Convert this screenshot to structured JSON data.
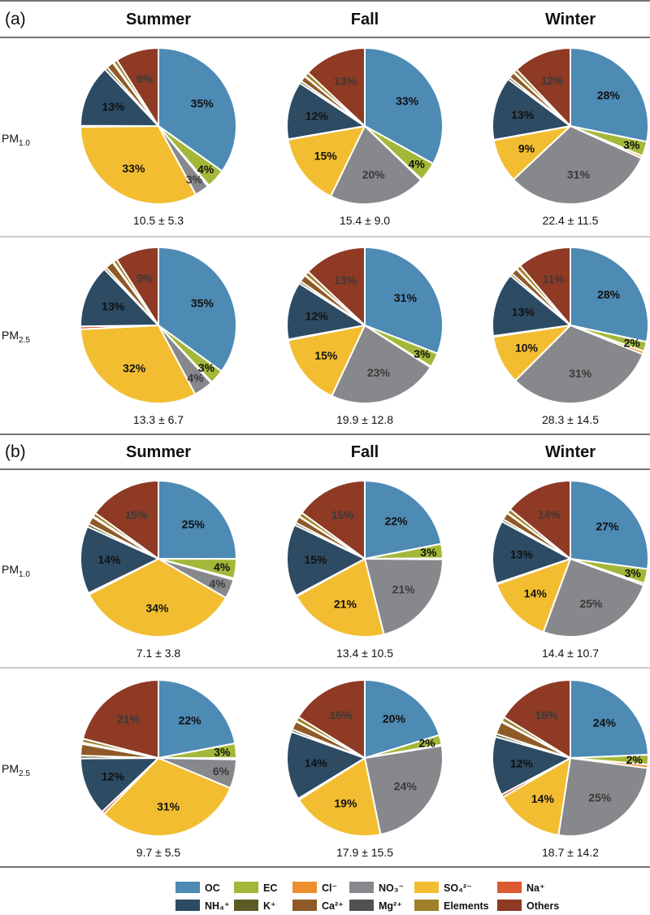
{
  "chart_data": {
    "type": "pie",
    "unit": "%",
    "components": [
      {
        "key": "OC",
        "label": "OC",
        "color": "#4D8AB4"
      },
      {
        "key": "EC",
        "label": "EC",
        "color": "#A3B83A"
      },
      {
        "key": "Cl",
        "label": "Cl⁻",
        "color": "#EE8F2F"
      },
      {
        "key": "NO3",
        "label": "NO₃⁻",
        "color": "#86888B"
      },
      {
        "key": "SO4",
        "label": "SO₄²⁻",
        "color": "#F2BD30"
      },
      {
        "key": "Na",
        "label": "Na⁺",
        "color": "#DC5A32"
      },
      {
        "key": "NH4",
        "label": "NH₄⁺",
        "color": "#2D4B63"
      },
      {
        "key": "K",
        "label": "K⁺",
        "color": "#5E5C26"
      },
      {
        "key": "Ca",
        "label": "Ca²⁺",
        "color": "#8F5A27"
      },
      {
        "key": "Mg",
        "label": "Mg²⁺",
        "color": "#525252"
      },
      {
        "key": "Elements",
        "label": "Elements",
        "color": "#A0812A"
      },
      {
        "key": "Others",
        "label": "Others",
        "color": "#8E3A24"
      }
    ],
    "slice_order": [
      "OC",
      "EC",
      "Cl",
      "NO3",
      "SO4",
      "Na",
      "NH4",
      "K",
      "Ca",
      "Mg",
      "Elements",
      "Others"
    ],
    "seasons": [
      "Summer",
      "Fall",
      "Winter"
    ],
    "size_fractions": [
      "PM1.0",
      "PM2.5"
    ],
    "panels": [
      {
        "label": "(a)",
        "rows": [
          {
            "size": "PM1.0",
            "pies": [
              {
                "season": "Summer",
                "total": "10.5 ± 5.3",
                "values": {
                  "OC": 35,
                  "EC": 4,
                  "Cl": 0.3,
                  "NO3": 3,
                  "SO4": 33,
                  "Na": 0.2,
                  "NH4": 13,
                  "K": 0.6,
                  "Ca": 1.5,
                  "Mg": 0.2,
                  "Elements": 0.8,
                  "Others": 9
                },
                "labels": {
                  "OC": "35%",
                  "EC": "4%",
                  "NO3": "3%",
                  "SO4": "33%",
                  "NH4": "13%",
                  "Others": "9%"
                }
              },
              {
                "season": "Fall",
                "total": "15.4 ± 9.0",
                "values": {
                  "OC": 33,
                  "EC": 4,
                  "Cl": 0.2,
                  "NO3": 20,
                  "SO4": 15,
                  "Na": 0.1,
                  "NH4": 12,
                  "K": 0.5,
                  "Ca": 1.2,
                  "Mg": 0.1,
                  "Elements": 0.9,
                  "Others": 13
                },
                "labels": {
                  "OC": "33%",
                  "EC": "4%",
                  "NO3": "20%",
                  "SO4": "15%",
                  "NH4": "12%",
                  "Others": "13%"
                }
              },
              {
                "season": "Winter",
                "total": "22.4 ± 11.5",
                "values": {
                  "OC": 28,
                  "EC": 3,
                  "Cl": 0.5,
                  "NO3": 31,
                  "SO4": 9,
                  "Na": 0.1,
                  "NH4": 13,
                  "K": 0.5,
                  "Ca": 1.2,
                  "Mg": 0.1,
                  "Elements": 0.8,
                  "Others": 12
                },
                "labels": {
                  "OC": "28%",
                  "EC": "3%",
                  "NO3": "31%",
                  "SO4": "9%",
                  "NH4": "13%",
                  "Others": "12%"
                }
              }
            ]
          },
          {
            "size": "PM2.5",
            "pies": [
              {
                "season": "Summer",
                "total": "13.3 ± 6.7",
                "values": {
                  "OC": 35,
                  "EC": 3,
                  "Cl": 0.2,
                  "NO3": 4,
                  "SO4": 32,
                  "Na": 0.6,
                  "NH4": 13,
                  "K": 0.5,
                  "Ca": 1.7,
                  "Mg": 0.2,
                  "Elements": 0.8,
                  "Others": 9
                },
                "labels": {
                  "OC": "35%",
                  "EC": "3%",
                  "NO3": "4%",
                  "SO4": "32%",
                  "NH4": "13%",
                  "Others": "9%"
                }
              },
              {
                "season": "Fall",
                "total": "19.9 ± 12.8",
                "values": {
                  "OC": 31,
                  "EC": 3,
                  "Cl": 0.2,
                  "NO3": 23,
                  "SO4": 15,
                  "Na": 0.2,
                  "NH4": 12,
                  "K": 0.5,
                  "Ca": 1.5,
                  "Mg": 0.1,
                  "Elements": 0.9,
                  "Others": 13
                },
                "labels": {
                  "OC": "31%",
                  "EC": "3%",
                  "NO3": "23%",
                  "SO4": "15%",
                  "NH4": "12%",
                  "Others": "13%"
                }
              },
              {
                "season": "Winter",
                "total": "28.3 ± 14.5",
                "values": {
                  "OC": 28,
                  "EC": 2,
                  "Cl": 0.6,
                  "NO3": 31,
                  "SO4": 10,
                  "Na": 0.2,
                  "NH4": 13,
                  "K": 0.5,
                  "Ca": 1.3,
                  "Mg": 0.1,
                  "Elements": 0.9,
                  "Others": 11
                },
                "labels": {
                  "OC": "28%",
                  "EC": "2%",
                  "NO3": "31%",
                  "SO4": "10%",
                  "NH4": "13%",
                  "Others": "11%"
                }
              }
            ]
          }
        ]
      },
      {
        "label": "(b)",
        "rows": [
          {
            "size": "PM1.0",
            "pies": [
              {
                "season": "Summer",
                "total": "7.1 ± 3.8",
                "values": {
                  "OC": 25,
                  "EC": 4,
                  "Cl": 0.3,
                  "NO3": 4,
                  "SO4": 34,
                  "Na": 0.3,
                  "NH4": 14,
                  "K": 0.6,
                  "Ca": 1.6,
                  "Mg": 0.2,
                  "Elements": 0.8,
                  "Others": 15
                },
                "labels": {
                  "OC": "25%",
                  "EC": "4%",
                  "NO3": "4%",
                  "SO4": "34%",
                  "NH4": "14%",
                  "Others": "15%"
                }
              },
              {
                "season": "Fall",
                "total": "13.4 ± 10.5",
                "values": {
                  "OC": 22,
                  "EC": 3,
                  "Cl": 0.2,
                  "NO3": 21,
                  "SO4": 21,
                  "Na": 0.2,
                  "NH4": 15,
                  "K": 0.5,
                  "Ca": 1.4,
                  "Mg": 0.1,
                  "Elements": 0.9,
                  "Others": 15
                },
                "labels": {
                  "OC": "22%",
                  "EC": "3%",
                  "NO3": "21%",
                  "SO4": "21%",
                  "NH4": "15%",
                  "Others": "15%"
                }
              },
              {
                "season": "Winter",
                "total": "14.4 ± 10.7",
                "values": {
                  "OC": 27,
                  "EC": 3,
                  "Cl": 0.4,
                  "NO3": 25,
                  "SO4": 14,
                  "Na": 0.2,
                  "NH4": 13,
                  "K": 0.5,
                  "Ca": 1.5,
                  "Mg": 0.1,
                  "Elements": 0.9,
                  "Others": 14
                },
                "labels": {
                  "OC": "27%",
                  "EC": "3%",
                  "NO3": "25%",
                  "SO4": "14%",
                  "NH4": "13%",
                  "Others": "14%"
                }
              }
            ]
          },
          {
            "size": "PM2.5",
            "pies": [
              {
                "season": "Summer",
                "total": "9.7 ± 5.5",
                "values": {
                  "OC": 22,
                  "EC": 3,
                  "Cl": 0.3,
                  "NO3": 6,
                  "SO4": 31,
                  "Na": 0.6,
                  "NH4": 12,
                  "K": 0.6,
                  "Ca": 2.4,
                  "Mg": 0.3,
                  "Elements": 0.8,
                  "Others": 21
                },
                "labels": {
                  "OC": "22%",
                  "EC": "3%",
                  "NO3": "6%",
                  "SO4": "31%",
                  "NH4": "12%",
                  "Others": "21%"
                }
              },
              {
                "season": "Fall",
                "total": "17.9 ± 15.5",
                "values": {
                  "OC": 20,
                  "EC": 2,
                  "Cl": 0.2,
                  "NO3": 24,
                  "SO4": 19,
                  "Na": 0.3,
                  "NH4": 14,
                  "K": 0.5,
                  "Ca": 1.8,
                  "Mg": 0.1,
                  "Elements": 0.9,
                  "Others": 16
                },
                "labels": {
                  "OC": "20%",
                  "EC": "2%",
                  "NO3": "24%",
                  "SO4": "19%",
                  "NH4": "14%",
                  "Others": "16%"
                }
              },
              {
                "season": "Winter",
                "total": "18.7 ± 14.2",
                "values": {
                  "OC": 24,
                  "EC": 2,
                  "Cl": 0.7,
                  "NO3": 25,
                  "SO4": 14,
                  "Na": 0.6,
                  "NH4": 12,
                  "K": 0.6,
                  "Ca": 2.6,
                  "Mg": 0.2,
                  "Elements": 0.9,
                  "Others": 16
                },
                "labels": {
                  "OC": "24%",
                  "EC": "2%",
                  "NO3": "25%",
                  "SO4": "14%",
                  "NH4": "12%",
                  "Others": "16%"
                }
              }
            ]
          }
        ]
      }
    ]
  }
}
